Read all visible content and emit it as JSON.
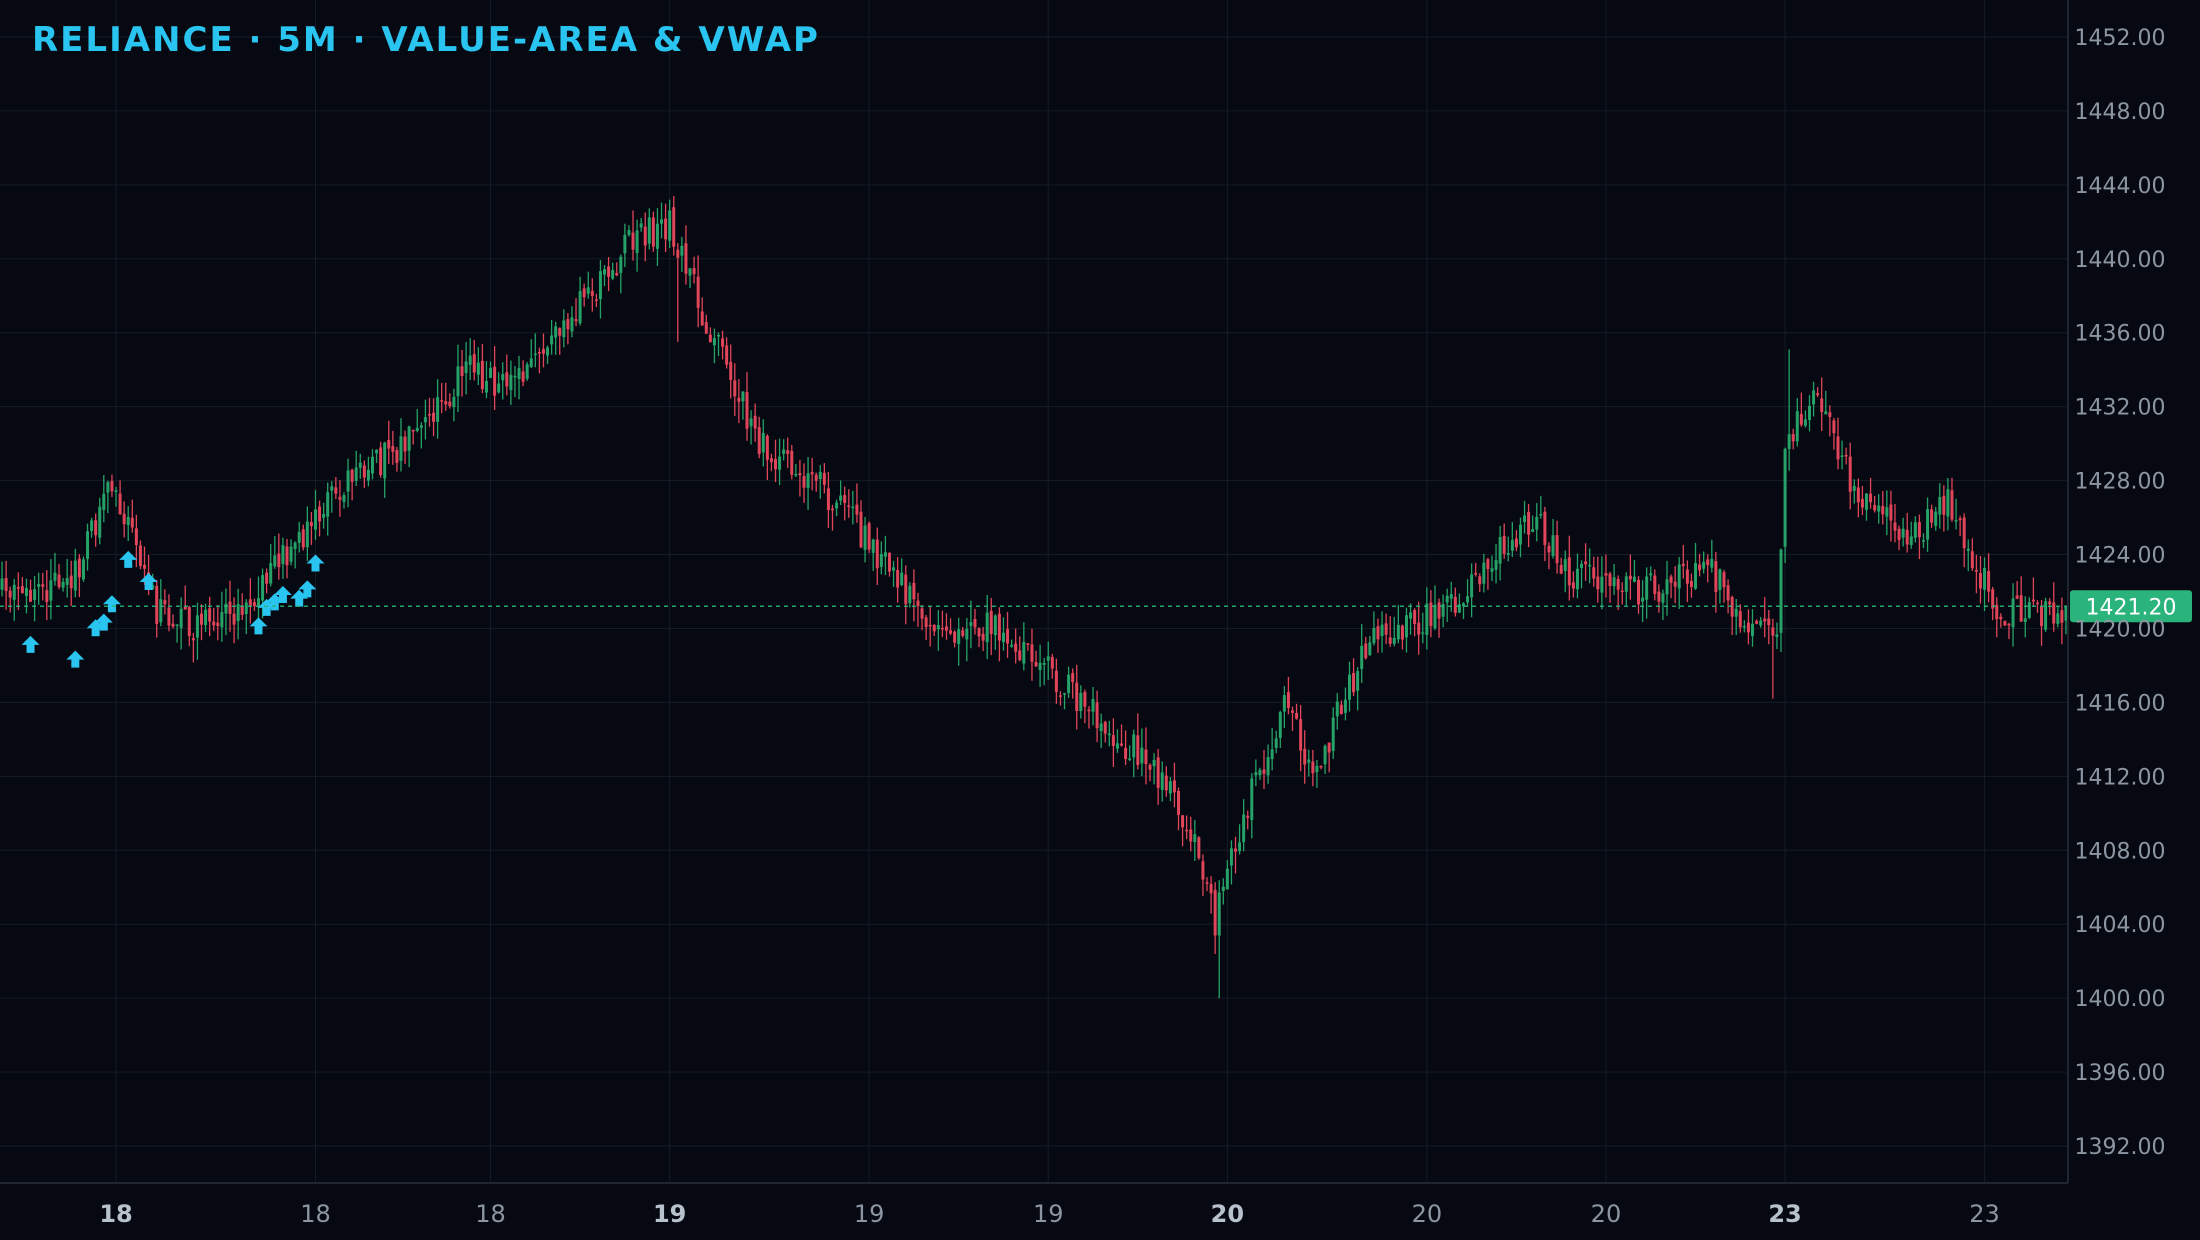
{
  "title": "RELIANCE · 5M · VALUE-AREA & VWAP",
  "colors": {
    "background": "#060911",
    "grid": "#141c26",
    "axis_text": "#8c96a2",
    "axis_line": "#1f2630",
    "bull": "#26a269",
    "bear": "#e0455a",
    "signal": "#29c4f0",
    "last_price": "#2ab37a",
    "last_price_line": "#2ab37a"
  },
  "chart_data": {
    "type": "candlestick",
    "symbol": "RELIANCE",
    "interval": "5M",
    "ylim": [
      1390,
      1454
    ],
    "y_ticks": [
      "1392.00",
      "1396.00",
      "1400.00",
      "1404.00",
      "1408.00",
      "1412.00",
      "1416.00",
      "1420.00",
      "1424.00",
      "1428.00",
      "1432.00",
      "1436.00",
      "1440.00",
      "1444.00",
      "1448.00",
      "1452.00"
    ],
    "x_ticks": [
      {
        "label": "18",
        "index": 28,
        "bold": true
      },
      {
        "label": "18",
        "index": 77,
        "bold": false
      },
      {
        "label": "18",
        "index": 120,
        "bold": false
      },
      {
        "label": "19",
        "index": 164,
        "bold": true
      },
      {
        "label": "19",
        "index": 213,
        "bold": false
      },
      {
        "label": "19",
        "index": 257,
        "bold": false
      },
      {
        "label": "20",
        "index": 301,
        "bold": true
      },
      {
        "label": "20",
        "index": 350,
        "bold": false
      },
      {
        "label": "20",
        "index": 394,
        "bold": false
      },
      {
        "label": "23",
        "index": 438,
        "bold": true
      },
      {
        "label": "23",
        "index": 487,
        "bold": false
      }
    ],
    "last_price": "1421.20",
    "last_price_value": 1421.2,
    "anchors": [
      [
        0,
        1422
      ],
      [
        10,
        1422
      ],
      [
        18,
        1423
      ],
      [
        27,
        1428
      ],
      [
        38,
        1421
      ],
      [
        48,
        1420
      ],
      [
        58,
        1421
      ],
      [
        70,
        1424
      ],
      [
        80,
        1427
      ],
      [
        105,
        1431
      ],
      [
        114,
        1434
      ],
      [
        125,
        1433
      ],
      [
        140,
        1437
      ],
      [
        155,
        1441
      ],
      [
        164,
        1442
      ],
      [
        174,
        1436
      ],
      [
        186,
        1430
      ],
      [
        200,
        1428
      ],
      [
        212,
        1425
      ],
      [
        228,
        1420
      ],
      [
        245,
        1420
      ],
      [
        265,
        1416
      ],
      [
        285,
        1412
      ],
      [
        295,
        1407
      ],
      [
        298,
        1404
      ],
      [
        305,
        1410
      ],
      [
        315,
        1416
      ],
      [
        322,
        1412
      ],
      [
        335,
        1419
      ],
      [
        355,
        1421
      ],
      [
        366,
        1424
      ],
      [
        377,
        1426
      ],
      [
        385,
        1423
      ],
      [
        400,
        1422
      ],
      [
        420,
        1423
      ],
      [
        430,
        1420
      ],
      [
        436,
        1420
      ],
      [
        438,
        1430
      ],
      [
        446,
        1433
      ],
      [
        456,
        1427
      ],
      [
        470,
        1425
      ],
      [
        478,
        1427
      ],
      [
        490,
        1421
      ],
      [
        507,
        1421
      ]
    ],
    "signals": [
      {
        "index": 7,
        "value": 1419.6
      },
      {
        "index": 18,
        "value": 1418.8
      },
      {
        "index": 23,
        "value": 1420.5
      },
      {
        "index": 25,
        "value": 1420.8
      },
      {
        "index": 27,
        "value": 1421.8
      },
      {
        "index": 31,
        "value": 1424.2
      },
      {
        "index": 36,
        "value": 1423.0
      },
      {
        "index": 63,
        "value": 1420.6
      },
      {
        "index": 65,
        "value": 1421.6
      },
      {
        "index": 67,
        "value": 1421.9
      },
      {
        "index": 69,
        "value": 1422.3
      },
      {
        "index": 73,
        "value": 1422.1
      },
      {
        "index": 75,
        "value": 1422.6
      },
      {
        "index": 77,
        "value": 1424.0
      }
    ]
  }
}
